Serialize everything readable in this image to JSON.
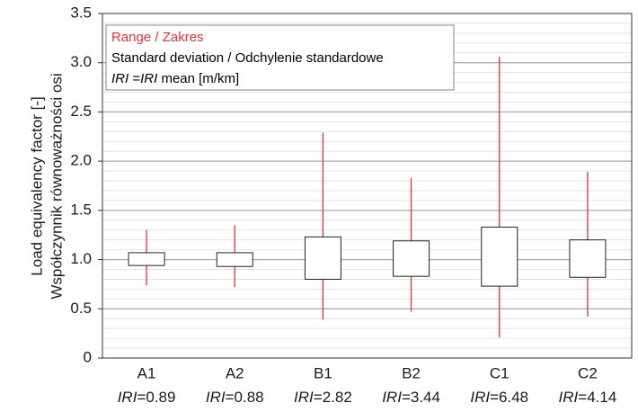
{
  "chart_data": {
    "type": "range_box",
    "y_label": [
      "Load equivalency factor [-]",
      "Współczynnik równoważności osi"
    ],
    "categories": [
      "A1",
      "A2",
      "B1",
      "B2",
      "C1",
      "C2"
    ],
    "x_sublabels": [
      {
        "symbol": "IRI",
        "text": "=0.89"
      },
      {
        "symbol": "IRI",
        "text": "=0.88"
      },
      {
        "symbol": "IRI",
        "text": "=2.82"
      },
      {
        "symbol": "IRI",
        "text": "=3.44"
      },
      {
        "symbol": "IRI",
        "text": "=6.48"
      },
      {
        "symbol": "IRI",
        "text": "=4.14"
      }
    ],
    "range_low": [
      0.74,
      0.72,
      0.39,
      0.47,
      0.21,
      0.42
    ],
    "range_high": [
      1.3,
      1.35,
      2.29,
      1.83,
      3.06,
      1.89
    ],
    "std_low": [
      0.94,
      0.93,
      0.8,
      0.83,
      0.73,
      0.82
    ],
    "std_high": [
      1.07,
      1.07,
      1.23,
      1.19,
      1.33,
      1.2
    ],
    "range_color": "#e8323a",
    "box_color": "#ffffff",
    "legend": [
      {
        "parts": [
          {
            "text": "Range / Zakres",
            "italic": false
          }
        ],
        "color": "#e8323a"
      },
      {
        "parts": [
          {
            "text": "Standard deviation / Odchylenie standardowe",
            "italic": false
          }
        ],
        "color": "#000000"
      },
      {
        "parts": [
          {
            "text": "IRI",
            "italic": true
          },
          {
            "text": " =",
            "italic": false
          },
          {
            "text": "IRI",
            "italic": true
          },
          {
            "text": " mean [m/km]",
            "italic": false
          }
        ],
        "color": "#000000"
      }
    ],
    "ylim": [
      0,
      3.5
    ],
    "yticks": [
      0,
      0.5,
      {
        "value": 1,
        "label": "1.0"
      },
      1.5,
      {
        "value": 2,
        "label": "2.0"
      },
      2.5,
      {
        "value": 3,
        "label": "3.0"
      },
      3.5
    ],
    "grid": true,
    "minor_grid_step": 0.1
  }
}
